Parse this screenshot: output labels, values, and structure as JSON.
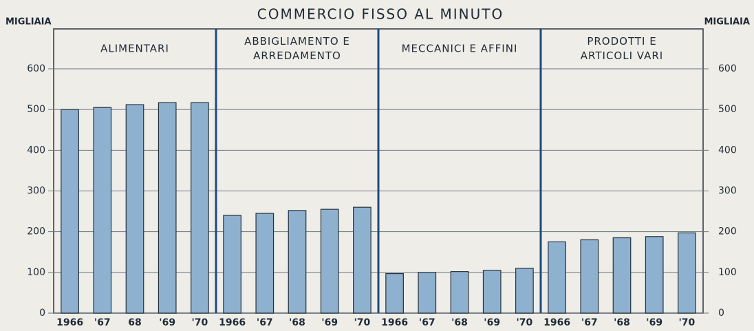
{
  "chart_data": {
    "type": "bar",
    "title": "COMMERCIO FISSO AL MINUTO",
    "y_label": "MIGLIAIA",
    "y2_label": "MIGLIAIA",
    "color": "#8fb1d0",
    "ylim": [
      0,
      600
    ],
    "yticks": [
      0,
      100,
      200,
      300,
      400,
      500,
      600
    ],
    "y2lim": [
      0,
      600
    ],
    "y2ticks": [
      0,
      100,
      200,
      300,
      400,
      500,
      600
    ],
    "grid": true,
    "panels": [
      {
        "name_lines": [
          "ALIMENTARI"
        ],
        "categories": [
          "1966",
          "'67",
          "68",
          "'69",
          "'70"
        ],
        "values": [
          500,
          505,
          512,
          517,
          517
        ]
      },
      {
        "name_lines": [
          "ABBIGLIAMENTO E",
          "ARREDAMENTO"
        ],
        "categories": [
          "1966",
          "'67",
          "'68",
          "'69",
          "'70"
        ],
        "values": [
          240,
          245,
          252,
          255,
          260
        ]
      },
      {
        "name_lines": [
          "MECCANICI E AFFINI"
        ],
        "categories": [
          "1966",
          "'67",
          "'68",
          "'69",
          "'70"
        ],
        "values": [
          97,
          100,
          102,
          105,
          110
        ]
      },
      {
        "name_lines": [
          "PRODOTTI E",
          "ARTICOLI VARI"
        ],
        "categories": [
          "1966",
          "'67",
          "'68",
          "'69",
          "'70"
        ],
        "values": [
          175,
          180,
          185,
          188,
          197
        ]
      }
    ]
  }
}
